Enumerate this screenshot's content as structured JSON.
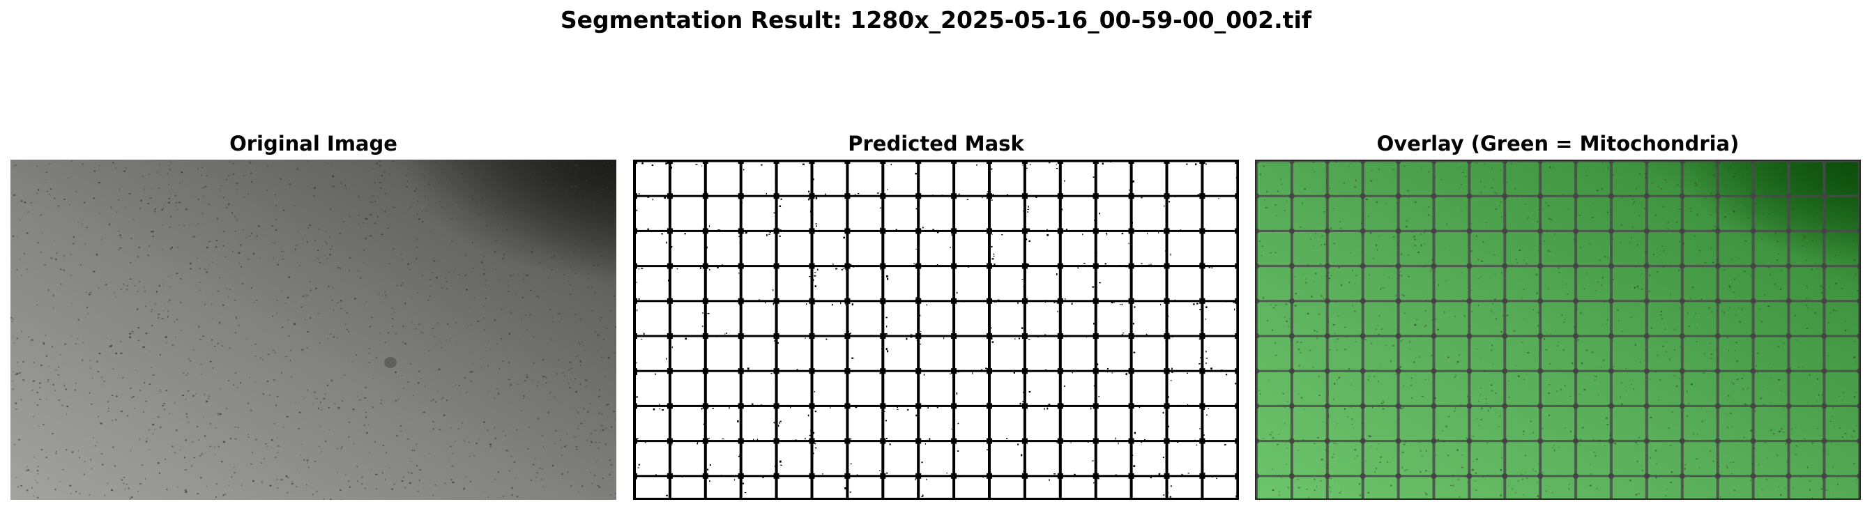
{
  "figure": {
    "title": "Segmentation Result: 1280x_2025-05-16_00-59-00_002.tif"
  },
  "panels": [
    {
      "title": "Original Image"
    },
    {
      "title": "Predicted Mask"
    },
    {
      "title": "Overlay (Green = Mitochondria)"
    }
  ],
  "colors": {
    "background": "#ffffff",
    "text": "#000000",
    "original_light": "#9d9e9b",
    "original_mid": "#7c7d78",
    "original_dark": "#2f302b",
    "mask_foreground": "#ffffff",
    "mask_grid": "#000000",
    "overlay_green_light": "#66bb66",
    "overlay_green_dark": "#116611",
    "overlay_grid": "#4a4a4a"
  }
}
